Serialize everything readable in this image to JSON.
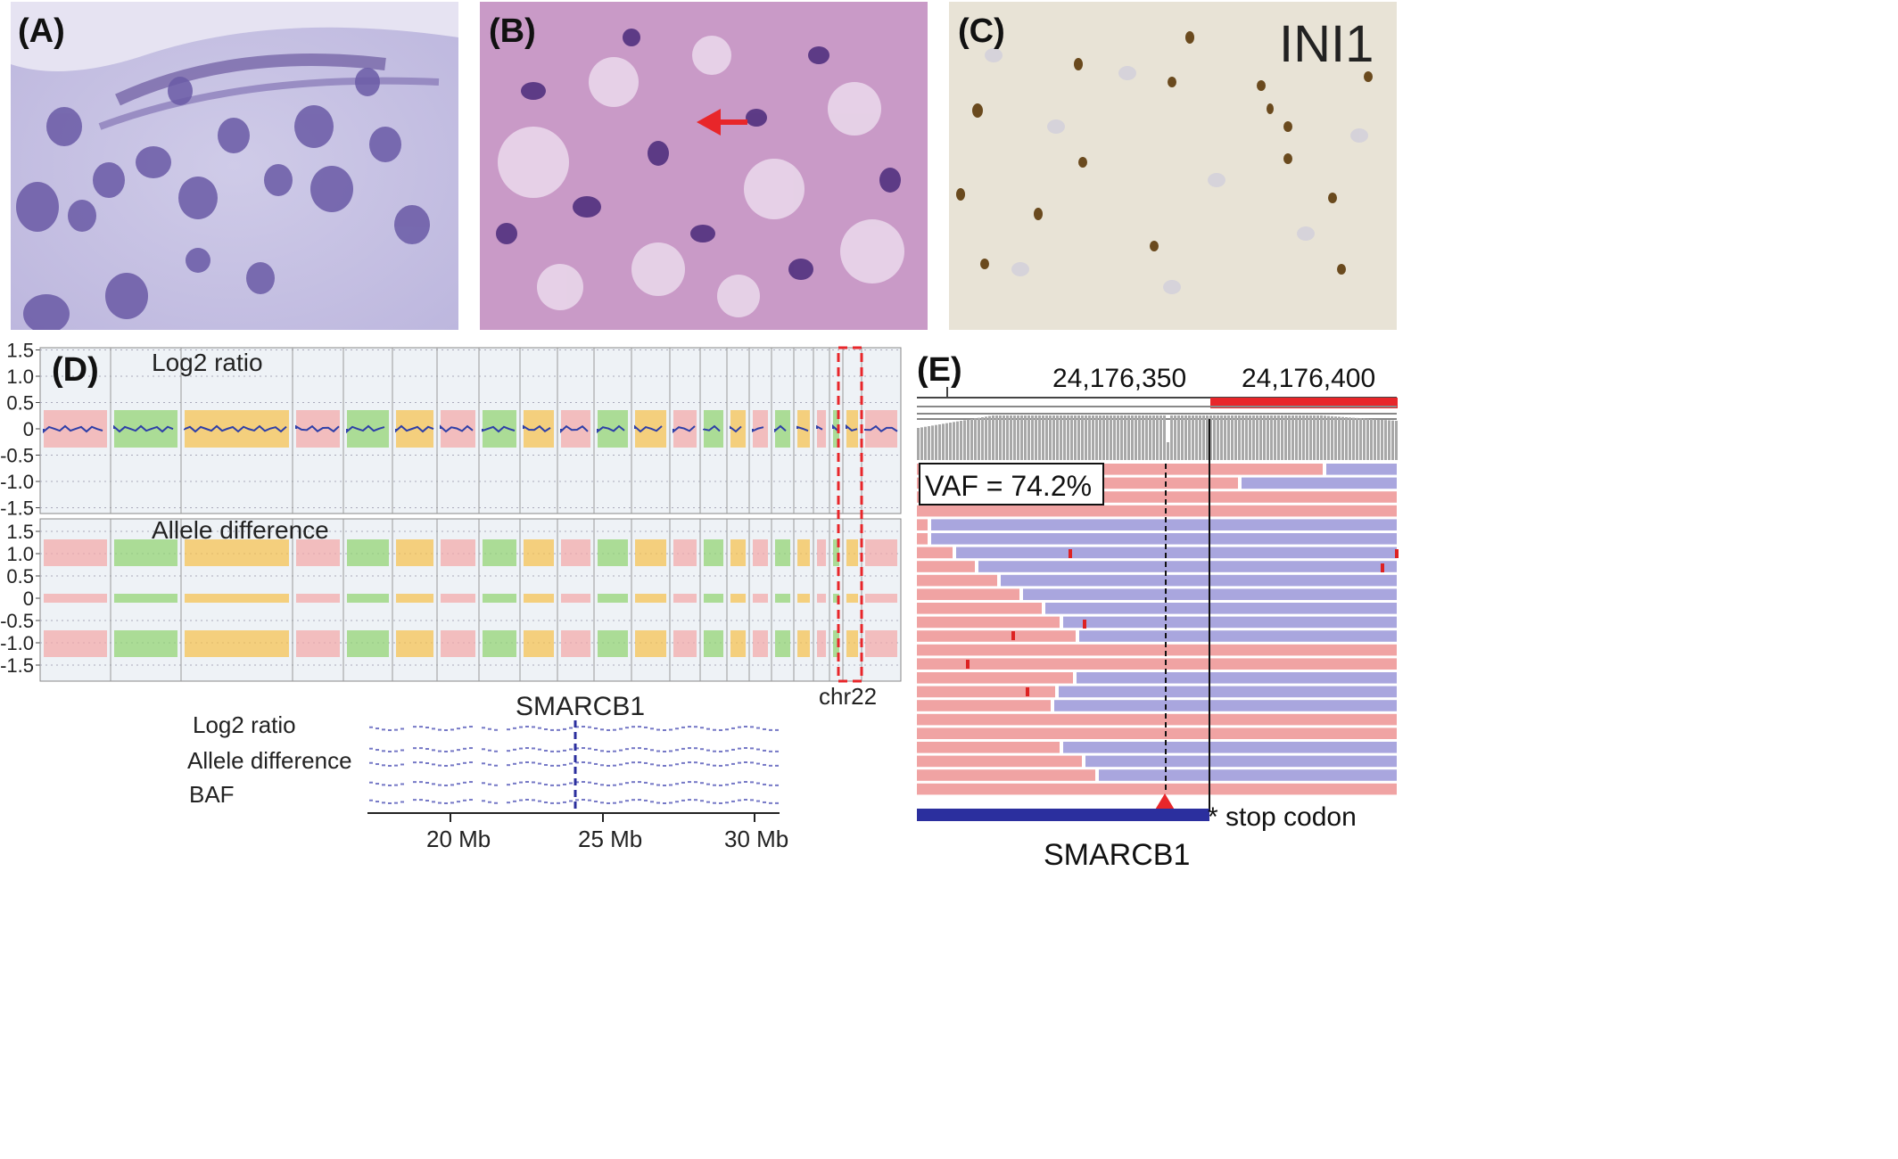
{
  "panels": {
    "a": {
      "label": "(A)"
    },
    "b": {
      "label": "(B)"
    },
    "c": {
      "label": "(C)",
      "stain": "INI1"
    },
    "d": {
      "label": "(D)",
      "top_title": "Log2 ratio",
      "bottom_title": "Allele difference",
      "yticks": [
        "1.5",
        "1.0",
        "0.5",
        "0",
        "-0.5",
        "-1.0",
        "-1.5"
      ],
      "chr_label": "chr22",
      "zoom": {
        "gene": "SMARCB1",
        "rows": [
          "Log2 ratio",
          "Allele difference",
          "BAF"
        ],
        "xticks": [
          "20 Mb",
          "25 Mb",
          "30 Mb"
        ]
      }
    },
    "e": {
      "label": "(E)",
      "pos1": "24,176,350",
      "pos2": "24,176,400",
      "vaf": "VAF = 74.2%",
      "stop": "* stop codon",
      "gene": "SMARCB1"
    }
  },
  "colors": {
    "pink": "#f4a7a7",
    "green": "#8fd36e",
    "orange": "#f7c04a",
    "blue_line": "#2e3fa8",
    "read_pink": "#f0a3a3",
    "read_blue": "#a9a6de",
    "red": "#e8262a",
    "gene_bar": "#2b2f9e"
  }
}
